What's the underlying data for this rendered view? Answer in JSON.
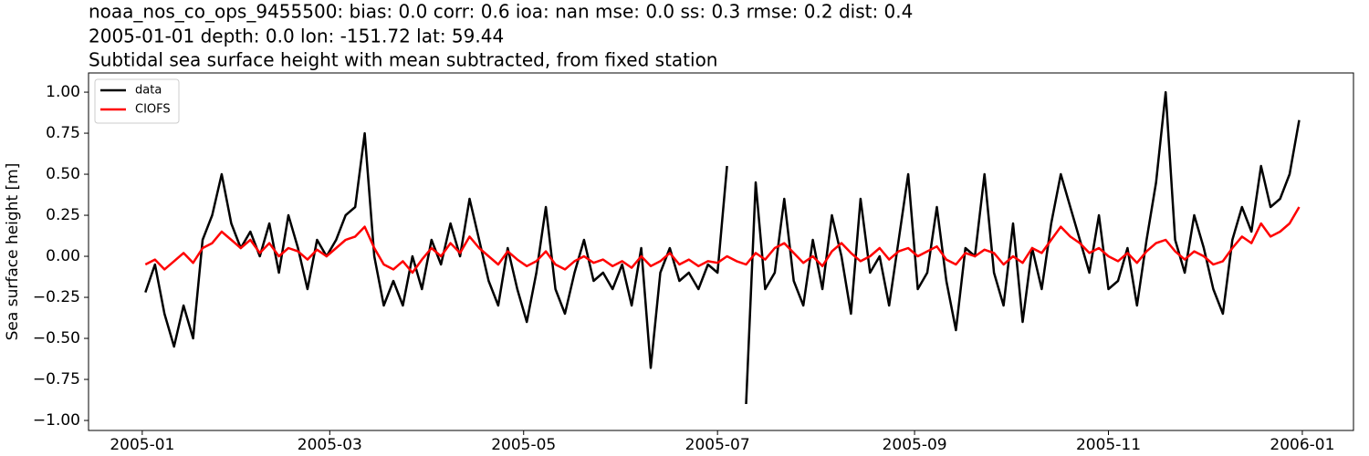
{
  "chart_data": {
    "type": "line",
    "title": [
      "noaa_nos_co_ops_9455500: bias: 0.0  corr: 0.6  ioa: nan  mse: 0.0  ss: 0.3  rmse: 0.2  dist: 0.4",
      "2005-01-01 depth: 0.0 lon: -151.72 lat: 59.44",
      "Subtidal sea surface height with mean subtracted, from fixed station"
    ],
    "ylabel": "Sea surface height [m]",
    "legend": "upper left",
    "x": [
      1,
      4,
      7,
      10,
      13,
      16,
      19,
      22,
      25,
      28,
      31,
      34,
      37,
      40,
      43,
      46,
      49,
      52,
      55,
      58,
      61,
      64,
      67,
      70,
      73,
      76,
      79,
      82,
      85,
      88,
      91,
      94,
      97,
      100,
      103,
      106,
      109,
      112,
      115,
      118,
      121,
      124,
      127,
      130,
      133,
      136,
      139,
      142,
      145,
      148,
      151,
      154,
      157,
      160,
      163,
      166,
      169,
      172,
      175,
      178,
      181,
      184,
      187,
      190,
      193,
      196,
      199,
      202,
      205,
      208,
      211,
      214,
      217,
      220,
      223,
      226,
      229,
      232,
      235,
      238,
      241,
      244,
      247,
      250,
      253,
      256,
      259,
      262,
      265,
      268,
      271,
      274,
      277,
      280,
      283,
      286,
      289,
      292,
      295,
      298,
      301,
      304,
      307,
      310,
      313,
      316,
      319,
      322,
      325,
      328,
      331,
      334,
      337,
      340,
      343,
      346,
      349,
      352,
      355,
      358,
      361,
      364
    ],
    "series": [
      {
        "name": "data",
        "color": "#000000",
        "values": [
          -0.22,
          -0.05,
          -0.35,
          -0.55,
          -0.3,
          -0.5,
          0.1,
          0.25,
          0.5,
          0.2,
          0.05,
          0.15,
          0.0,
          0.2,
          -0.1,
          0.25,
          0.05,
          -0.2,
          0.1,
          0.0,
          0.1,
          0.25,
          0.3,
          0.75,
          0.0,
          -0.3,
          -0.15,
          -0.3,
          0.0,
          -0.2,
          0.1,
          -0.05,
          0.2,
          0.0,
          0.35,
          0.1,
          -0.15,
          -0.3,
          0.05,
          -0.2,
          -0.4,
          -0.1,
          0.3,
          -0.2,
          -0.35,
          -0.1,
          0.1,
          -0.15,
          -0.1,
          -0.2,
          -0.05,
          -0.3,
          0.05,
          -0.68,
          -0.1,
          0.05,
          -0.15,
          -0.1,
          -0.2,
          -0.05,
          -0.1,
          0.55,
          null,
          -0.9,
          0.45,
          -0.2,
          -0.1,
          0.35,
          -0.15,
          -0.3,
          0.1,
          -0.2,
          0.25,
          0.0,
          -0.35,
          0.35,
          -0.1,
          0.0,
          -0.3,
          0.1,
          0.5,
          -0.2,
          -0.1,
          0.3,
          -0.15,
          -0.45,
          0.05,
          0.0,
          0.5,
          -0.1,
          -0.3,
          0.2,
          -0.4,
          0.05,
          -0.2,
          0.2,
          0.5,
          0.3,
          0.1,
          -0.1,
          0.25,
          -0.2,
          -0.15,
          0.05,
          -0.3,
          0.1,
          0.45,
          1.0,
          0.1,
          -0.1,
          0.25,
          0.05,
          -0.2,
          -0.35,
          0.1,
          0.3,
          0.15,
          0.55,
          0.3,
          0.35,
          0.5,
          0.83
        ]
      },
      {
        "name": "CIOFS",
        "color": "#ff0000",
        "values": [
          -0.05,
          -0.02,
          -0.08,
          -0.03,
          0.02,
          -0.04,
          0.05,
          0.08,
          0.15,
          0.1,
          0.05,
          0.1,
          0.02,
          0.08,
          0.0,
          0.05,
          0.03,
          -0.02,
          0.04,
          0.0,
          0.05,
          0.1,
          0.12,
          0.18,
          0.05,
          -0.05,
          -0.08,
          -0.03,
          -0.1,
          -0.02,
          0.05,
          0.0,
          0.08,
          0.02,
          0.12,
          0.05,
          0.0,
          -0.05,
          0.03,
          -0.02,
          -0.06,
          -0.03,
          0.03,
          -0.05,
          -0.08,
          -0.03,
          0.0,
          -0.04,
          -0.02,
          -0.06,
          -0.03,
          -0.07,
          0.0,
          -0.06,
          -0.03,
          0.02,
          -0.05,
          -0.02,
          -0.06,
          -0.03,
          -0.04,
          0.0,
          -0.03,
          -0.05,
          0.02,
          -0.02,
          0.05,
          0.08,
          0.02,
          -0.04,
          0.0,
          -0.06,
          0.03,
          0.08,
          0.02,
          -0.03,
          0.0,
          0.05,
          -0.02,
          0.03,
          0.05,
          0.0,
          0.03,
          0.06,
          -0.02,
          -0.05,
          0.02,
          0.0,
          0.04,
          0.02,
          -0.05,
          0.0,
          -0.04,
          0.05,
          0.02,
          0.1,
          0.18,
          0.12,
          0.08,
          0.02,
          0.05,
          0.0,
          -0.03,
          0.02,
          -0.04,
          0.03,
          0.08,
          0.1,
          0.03,
          -0.02,
          0.03,
          0.0,
          -0.05,
          -0.03,
          0.05,
          0.12,
          0.08,
          0.2,
          0.12,
          0.15,
          0.2,
          0.3
        ]
      }
    ],
    "xlim": [
      -16.9,
      381.1
    ],
    "xticks": [
      {
        "value": 0,
        "label": "2005-01"
      },
      {
        "value": 59,
        "label": "2005-03"
      },
      {
        "value": 120,
        "label": "2005-05"
      },
      {
        "value": 181,
        "label": "2005-07"
      },
      {
        "value": 243,
        "label": "2005-09"
      },
      {
        "value": 304,
        "label": "2005-11"
      },
      {
        "value": 365,
        "label": "2006-01"
      }
    ],
    "ylim": [
      -1.061,
      1.117
    ],
    "yticks": [
      {
        "value": -1,
        "label": "−1.00"
      },
      {
        "value": -0.75,
        "label": "−0.75"
      },
      {
        "value": -0.5,
        "label": "−0.50"
      },
      {
        "value": -0.25,
        "label": "−0.25"
      },
      {
        "value": 0,
        "label": "0.00"
      },
      {
        "value": 0.25,
        "label": "0.25"
      },
      {
        "value": 0.5,
        "label": "0.50"
      },
      {
        "value": 0.75,
        "label": "0.75"
      },
      {
        "value": 1,
        "label": "1.00"
      }
    ]
  }
}
